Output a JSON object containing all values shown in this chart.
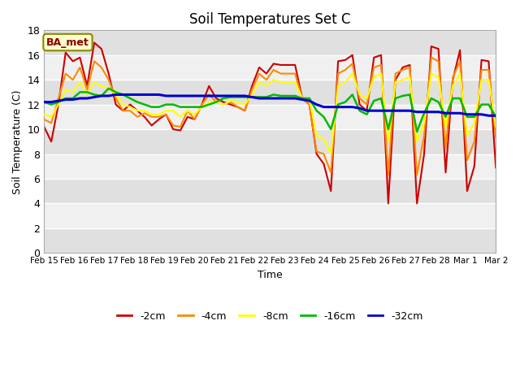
{
  "title": "Soil Temperatures Set C",
  "xlabel": "Time",
  "ylabel": "Soil Temperature (C)",
  "ylim": [
    0,
    18
  ],
  "yticks": [
    0,
    2,
    4,
    6,
    8,
    10,
    12,
    14,
    16,
    18
  ],
  "annotation": "BA_met",
  "legend_labels": [
    "-2cm",
    "-4cm",
    "-8cm",
    "-16cm",
    "-32cm"
  ],
  "legend_colors": [
    "#cc0000",
    "#ff8800",
    "#ffff00",
    "#00bb00",
    "#0000cc"
  ],
  "background_color": "#ffffff",
  "plot_bg_light": "#f0f0f0",
  "plot_bg_dark": "#e0e0e0",
  "x_labels": [
    "Feb 15",
    "Feb 16",
    "Feb 17",
    "Feb 18",
    "Feb 19",
    "Feb 20",
    "Feb 21",
    "Feb 22",
    "Feb 23",
    "Feb 24",
    "Feb 25",
    "Feb 26",
    "Feb 27",
    "Feb 28",
    "Mar 1",
    "Mar 2"
  ],
  "n_days": 16,
  "series": {
    "d2cm": [
      10.2,
      9.0,
      12.0,
      16.2,
      15.5,
      15.8,
      13.5,
      17.0,
      16.5,
      14.5,
      12.0,
      11.5,
      12.0,
      11.5,
      11.0,
      10.3,
      10.8,
      11.2,
      10.0,
      9.9,
      11.0,
      10.8,
      12.0,
      13.5,
      12.5,
      12.2,
      12.0,
      11.8,
      11.5,
      13.5,
      15.0,
      14.5,
      15.3,
      15.2,
      15.2,
      15.2,
      12.5,
      12.0,
      8.0,
      7.2,
      5.0,
      15.5,
      15.6,
      16.0,
      12.0,
      11.5,
      15.8,
      16.0,
      4.0,
      14.0,
      15.0,
      15.2,
      4.0,
      8.0,
      16.7,
      16.5,
      6.5,
      14.0,
      16.4,
      5.0,
      7.0,
      15.6,
      15.5,
      6.9
    ],
    "d4cm": [
      10.8,
      10.5,
      12.5,
      14.5,
      14.0,
      15.0,
      13.2,
      15.5,
      15.0,
      14.0,
      12.5,
      11.5,
      11.5,
      11.0,
      11.3,
      11.0,
      11.0,
      11.2,
      10.3,
      10.2,
      11.5,
      10.8,
      12.0,
      12.8,
      12.2,
      12.0,
      12.2,
      11.8,
      11.5,
      13.2,
      14.5,
      14.0,
      14.8,
      14.5,
      14.5,
      14.5,
      12.5,
      12.0,
      8.2,
      8.0,
      6.5,
      14.5,
      14.8,
      15.3,
      12.5,
      12.0,
      15.0,
      15.2,
      6.3,
      14.5,
      14.8,
      15.0,
      6.3,
      9.5,
      15.8,
      15.5,
      8.5,
      14.2,
      15.5,
      7.5,
      9.0,
      14.8,
      14.8,
      9.3
    ],
    "d8cm": [
      11.2,
      11.0,
      12.0,
      13.2,
      13.0,
      13.8,
      12.8,
      13.8,
      13.5,
      13.3,
      12.8,
      12.0,
      11.8,
      11.5,
      11.5,
      11.2,
      11.2,
      11.5,
      11.5,
      11.0,
      11.5,
      11.2,
      11.8,
      12.2,
      12.2,
      12.0,
      12.3,
      12.2,
      12.0,
      12.8,
      13.8,
      13.5,
      14.0,
      13.8,
      13.8,
      13.8,
      12.5,
      12.5,
      9.5,
      9.2,
      8.0,
      13.5,
      13.8,
      14.5,
      12.8,
      12.5,
      14.2,
      14.5,
      9.0,
      13.8,
      14.0,
      14.2,
      9.0,
      10.5,
      14.5,
      14.2,
      10.2,
      13.5,
      14.5,
      9.5,
      10.5,
      14.0,
      14.0,
      10.2
    ],
    "d16cm": [
      12.2,
      12.0,
      12.2,
      12.5,
      12.5,
      13.0,
      13.0,
      12.8,
      12.7,
      13.3,
      13.0,
      12.8,
      12.5,
      12.2,
      12.0,
      11.8,
      11.8,
      12.0,
      12.0,
      11.8,
      11.8,
      11.8,
      11.8,
      12.0,
      12.2,
      12.5,
      12.6,
      12.6,
      12.6,
      12.6,
      12.6,
      12.6,
      12.8,
      12.7,
      12.7,
      12.7,
      12.5,
      12.5,
      11.5,
      11.0,
      10.0,
      12.0,
      12.2,
      12.8,
      11.5,
      11.2,
      12.3,
      12.5,
      10.0,
      12.5,
      12.7,
      12.8,
      9.8,
      11.3,
      12.5,
      12.2,
      11.0,
      12.5,
      12.5,
      11.0,
      11.0,
      12.0,
      12.0,
      11.0
    ],
    "d32cm": [
      12.2,
      12.2,
      12.3,
      12.4,
      12.4,
      12.5,
      12.5,
      12.6,
      12.7,
      12.7,
      12.8,
      12.8,
      12.8,
      12.8,
      12.8,
      12.8,
      12.8,
      12.7,
      12.7,
      12.7,
      12.7,
      12.7,
      12.7,
      12.7,
      12.7,
      12.7,
      12.7,
      12.7,
      12.7,
      12.6,
      12.5,
      12.5,
      12.5,
      12.5,
      12.5,
      12.5,
      12.4,
      12.3,
      12.0,
      11.8,
      11.8,
      11.8,
      11.8,
      11.8,
      11.7,
      11.5,
      11.5,
      11.5,
      11.5,
      11.5,
      11.5,
      11.5,
      11.4,
      11.4,
      11.4,
      11.4,
      11.3,
      11.3,
      11.3,
      11.2,
      11.2,
      11.2,
      11.1,
      11.1
    ]
  }
}
